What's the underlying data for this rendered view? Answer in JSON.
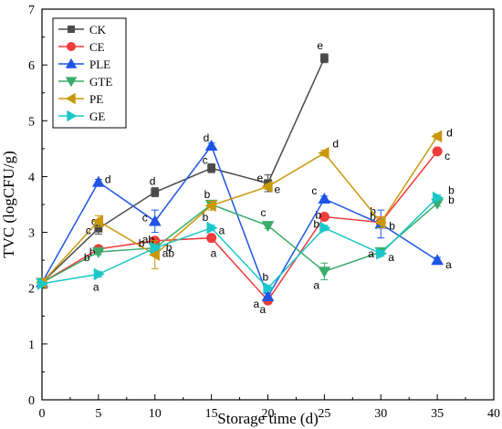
{
  "chart_data": {
    "type": "line",
    "xlabel": "Storage time (d)",
    "ylabel": "TVC (logCFU/g)",
    "xlim": [
      0,
      40
    ],
    "ylim": [
      0,
      7
    ],
    "x_ticks": [
      "0",
      "5",
      "10",
      "15",
      "20",
      "25",
      "30",
      "35",
      "40"
    ],
    "y_ticks": [
      "0",
      "1",
      "2",
      "3",
      "4",
      "5",
      "6",
      "7"
    ],
    "grid": false,
    "legend_position": "top-left",
    "series": [
      {
        "name": "CK",
        "color": "#4a4a4a",
        "marker": "square",
        "x": [
          0,
          5,
          10,
          15,
          20,
          25
        ],
        "y": [
          2.1,
          3.07,
          3.72,
          4.15,
          3.88,
          6.12
        ],
        "err": [
          0,
          0.1,
          0.08,
          0.08,
          0.15,
          0.08
        ],
        "letters": [
          "",
          "c",
          "d",
          "c",
          "e",
          "e"
        ]
      },
      {
        "name": "CE",
        "color": "#ee3b3b",
        "marker": "circle",
        "x": [
          0,
          5,
          10,
          15,
          20,
          25,
          30,
          35
        ],
        "y": [
          2.1,
          2.7,
          2.85,
          2.9,
          1.78,
          3.28,
          3.18,
          4.45
        ],
        "err": [
          0,
          0.05,
          0.05,
          0.05,
          0.05,
          0.05,
          0.1,
          0.05
        ],
        "letters": [
          "",
          "b",
          "ab",
          "a",
          "a",
          "b",
          "b",
          "c"
        ]
      },
      {
        "name": "PLE",
        "color": "#1f55e6",
        "marker": "triangle-up",
        "x": [
          0,
          5,
          10,
          15,
          20,
          25,
          30,
          35
        ],
        "y": [
          2.1,
          3.9,
          3.2,
          4.55,
          1.85,
          3.6,
          3.15,
          2.5
        ],
        "err": [
          0,
          0.05,
          0.2,
          0.05,
          0.05,
          0.05,
          0.25,
          0.05
        ],
        "letters": [
          "",
          "d",
          "c",
          "d",
          "a",
          "c",
          "b",
          "a"
        ]
      },
      {
        "name": "GTE",
        "color": "#3aab6a",
        "marker": "triangle-down",
        "x": [
          0,
          5,
          10,
          15,
          20,
          25,
          30,
          35
        ],
        "y": [
          2.1,
          2.65,
          2.72,
          3.5,
          3.12,
          2.3,
          2.65,
          3.52
        ],
        "err": [
          0,
          0.05,
          0.05,
          0.05,
          0.05,
          0.15,
          0.05,
          0.05
        ],
        "letters": [
          "",
          "b",
          "ab",
          "b",
          "c",
          "a",
          "a",
          "b"
        ]
      },
      {
        "name": "PE",
        "color": "#c9980a",
        "marker": "triangle-left",
        "x": [
          0,
          5,
          10,
          15,
          20,
          25,
          30,
          35
        ],
        "y": [
          2.1,
          3.2,
          2.6,
          3.48,
          3.82,
          4.42,
          3.18,
          4.72
        ],
        "err": [
          0,
          0.1,
          0.25,
          0.08,
          0.05,
          0.05,
          0.1,
          0.05
        ],
        "letters": [
          "",
          "c",
          "b",
          "b",
          "e",
          "d",
          "b",
          "d"
        ]
      },
      {
        "name": "GE",
        "color": "#1bc7c9",
        "marker": "triangle-right",
        "x": [
          0,
          5,
          10,
          15,
          20,
          25,
          30,
          35
        ],
        "y": [
          2.08,
          2.25,
          2.72,
          3.08,
          2.0,
          3.08,
          2.62,
          3.62
        ],
        "err": [
          0,
          0.05,
          0.05,
          0.05,
          0.05,
          0.05,
          0.05,
          0.05
        ],
        "letters": [
          "",
          "a",
          "b",
          "a",
          "b",
          "b",
          "a",
          "b"
        ]
      }
    ]
  }
}
